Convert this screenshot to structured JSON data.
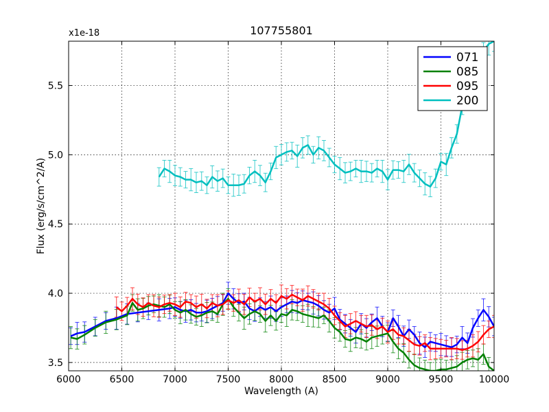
{
  "chart_data": {
    "type": "line",
    "title": "107755801",
    "xlabel": "Wavelength (A)",
    "ylabel": "Flux (erg/s/cm^2/A)",
    "y_offset_label": "x1e-18",
    "xlim": [
      6000,
      10000
    ],
    "ylim": [
      3.44,
      5.82
    ],
    "grid": true,
    "legend_position": "top-right",
    "x_ticks": [
      6000,
      6500,
      7000,
      7500,
      8000,
      8500,
      9000,
      9500,
      10000
    ],
    "x_tick_labels": [
      "6000",
      "6500",
      "7000",
      "7500",
      "8000",
      "8500",
      "9000",
      "9500",
      "10000"
    ],
    "y_ticks": [
      3.5,
      4.0,
      4.5,
      5.0,
      5.5
    ],
    "y_tick_labels": [
      "3.5",
      "4.0",
      "4.5",
      "5.0",
      "5.5"
    ],
    "series": [
      {
        "name": "071",
        "color": "#0000ff",
        "x": [
          6020,
          6080,
          6150,
          6250,
          6350,
          6450,
          6550,
          6650,
          6750,
          6850,
          6950,
          7000,
          7050,
          7100,
          7150,
          7200,
          7250,
          7300,
          7350,
          7400,
          7450,
          7500,
          7550,
          7600,
          7650,
          7700,
          7750,
          7800,
          7850,
          7900,
          7950,
          8000,
          8050,
          8100,
          8150,
          8200,
          8250,
          8300,
          8350,
          8400,
          8450,
          8500,
          8550,
          8600,
          8650,
          8700,
          8750,
          8800,
          8850,
          8900,
          8950,
          9000,
          9050,
          9100,
          9150,
          9200,
          9250,
          9300,
          9350,
          9400,
          9450,
          9500,
          9550,
          9600,
          9650,
          9700,
          9750,
          9800,
          9850,
          9900,
          9950,
          10000
        ],
        "values": [
          3.69,
          3.71,
          3.72,
          3.76,
          3.8,
          3.82,
          3.85,
          3.86,
          3.87,
          3.88,
          3.89,
          3.9,
          3.88,
          3.87,
          3.88,
          3.86,
          3.86,
          3.87,
          3.89,
          3.91,
          3.93,
          4.0,
          3.96,
          3.93,
          3.94,
          3.89,
          3.87,
          3.9,
          3.88,
          3.9,
          3.87,
          3.9,
          3.92,
          3.94,
          3.93,
          3.95,
          3.94,
          3.93,
          3.91,
          3.88,
          3.86,
          3.89,
          3.81,
          3.78,
          3.75,
          3.72,
          3.78,
          3.75,
          3.79,
          3.82,
          3.76,
          3.72,
          3.82,
          3.76,
          3.69,
          3.74,
          3.7,
          3.64,
          3.61,
          3.65,
          3.64,
          3.63,
          3.62,
          3.61,
          3.63,
          3.68,
          3.64,
          3.75,
          3.82,
          3.88,
          3.83,
          3.76
        ]
      },
      {
        "name": "085",
        "color": "#008000",
        "x": [
          6020,
          6080,
          6150,
          6250,
          6350,
          6450,
          6550,
          6600,
          6650,
          6700,
          6750,
          6800,
          6850,
          6900,
          6950,
          7000,
          7050,
          7100,
          7150,
          7200,
          7250,
          7300,
          7350,
          7400,
          7450,
          7500,
          7550,
          7600,
          7650,
          7700,
          7750,
          7800,
          7850,
          7900,
          7950,
          8000,
          8050,
          8100,
          8150,
          8200,
          8250,
          8300,
          8350,
          8400,
          8450,
          8500,
          8550,
          8600,
          8650,
          8700,
          8750,
          8800,
          8850,
          8900,
          8950,
          9000,
          9050,
          9100,
          9150,
          9200,
          9250,
          9300,
          9350,
          9400,
          9450,
          9500,
          9550,
          9600,
          9650,
          9700,
          9750,
          9800,
          9850,
          9900,
          9950,
          10000
        ],
        "values": [
          3.68,
          3.67,
          3.7,
          3.75,
          3.79,
          3.81,
          3.84,
          3.93,
          3.88,
          3.89,
          3.91,
          3.92,
          3.91,
          3.9,
          3.92,
          3.88,
          3.86,
          3.88,
          3.85,
          3.83,
          3.84,
          3.86,
          3.87,
          3.85,
          3.92,
          3.96,
          3.9,
          3.86,
          3.82,
          3.85,
          3.87,
          3.85,
          3.8,
          3.84,
          3.8,
          3.85,
          3.84,
          3.88,
          3.87,
          3.85,
          3.84,
          3.83,
          3.82,
          3.84,
          3.8,
          3.75,
          3.72,
          3.67,
          3.66,
          3.68,
          3.67,
          3.65,
          3.68,
          3.69,
          3.7,
          3.71,
          3.65,
          3.6,
          3.57,
          3.52,
          3.48,
          3.46,
          3.45,
          3.44,
          3.44,
          3.45,
          3.45,
          3.46,
          3.47,
          3.5,
          3.52,
          3.53,
          3.52,
          3.56,
          3.47,
          3.44
        ]
      },
      {
        "name": "095",
        "color": "#ff0000",
        "x": [
          6450,
          6500,
          6550,
          6600,
          6650,
          6700,
          6750,
          6800,
          6850,
          6900,
          6950,
          7000,
          7050,
          7100,
          7150,
          7200,
          7250,
          7300,
          7350,
          7400,
          7450,
          7500,
          7550,
          7600,
          7650,
          7700,
          7750,
          7800,
          7850,
          7900,
          7950,
          8000,
          8050,
          8100,
          8150,
          8200,
          8250,
          8300,
          8350,
          8400,
          8450,
          8500,
          8550,
          8600,
          8650,
          8700,
          8750,
          8800,
          8850,
          8900,
          8950,
          9000,
          9050,
          9100,
          9150,
          9200,
          9250,
          9300,
          9350,
          9400,
          9450,
          9500,
          9550,
          9600,
          9650,
          9700,
          9750,
          9800,
          9850,
          9900,
          9950,
          10000
        ],
        "values": [
          3.9,
          3.87,
          3.91,
          3.96,
          3.92,
          3.9,
          3.93,
          3.91,
          3.9,
          3.92,
          3.93,
          3.92,
          3.9,
          3.94,
          3.93,
          3.9,
          3.92,
          3.89,
          3.93,
          3.91,
          3.92,
          3.95,
          3.93,
          3.95,
          3.92,
          3.97,
          3.94,
          3.96,
          3.92,
          3.96,
          3.93,
          3.98,
          3.96,
          3.99,
          3.97,
          3.95,
          3.98,
          3.96,
          3.94,
          3.92,
          3.89,
          3.84,
          3.8,
          3.76,
          3.78,
          3.8,
          3.78,
          3.76,
          3.77,
          3.74,
          3.76,
          3.72,
          3.74,
          3.7,
          3.69,
          3.66,
          3.63,
          3.62,
          3.64,
          3.6,
          3.6,
          3.6,
          3.6,
          3.6,
          3.6,
          3.59,
          3.6,
          3.62,
          3.65,
          3.7,
          3.74,
          3.76
        ]
      },
      {
        "name": "200",
        "color": "#00bfbf",
        "x": [
          6850,
          6900,
          6950,
          7000,
          7050,
          7100,
          7150,
          7200,
          7250,
          7300,
          7350,
          7400,
          7450,
          7500,
          7550,
          7600,
          7650,
          7700,
          7750,
          7800,
          7850,
          7900,
          7950,
          8000,
          8050,
          8100,
          8150,
          8200,
          8250,
          8300,
          8350,
          8400,
          8450,
          8500,
          8550,
          8600,
          8650,
          8700,
          8750,
          8800,
          8850,
          8900,
          8950,
          9000,
          9050,
          9100,
          9150,
          9200,
          9250,
          9300,
          9350,
          9400,
          9450,
          9500,
          9550,
          9600,
          9650,
          9700,
          9750,
          9800,
          9850,
          9900,
          9950,
          10000
        ],
        "values": [
          4.84,
          4.9,
          4.88,
          4.85,
          4.84,
          4.82,
          4.82,
          4.8,
          4.81,
          4.78,
          4.84,
          4.81,
          4.83,
          4.78,
          4.78,
          4.78,
          4.79,
          4.85,
          4.88,
          4.85,
          4.8,
          4.88,
          4.98,
          5.0,
          5.02,
          5.03,
          4.99,
          5.05,
          5.07,
          5.0,
          5.05,
          5.03,
          4.98,
          4.93,
          4.9,
          4.87,
          4.88,
          4.9,
          4.88,
          4.88,
          4.87,
          4.9,
          4.88,
          4.82,
          4.89,
          4.89,
          4.88,
          4.93,
          4.87,
          4.83,
          4.79,
          4.77,
          4.83,
          4.95,
          4.93,
          5.05,
          5.15,
          5.35,
          5.45,
          5.55,
          5.65,
          5.75,
          5.8,
          5.82
        ]
      }
    ]
  }
}
